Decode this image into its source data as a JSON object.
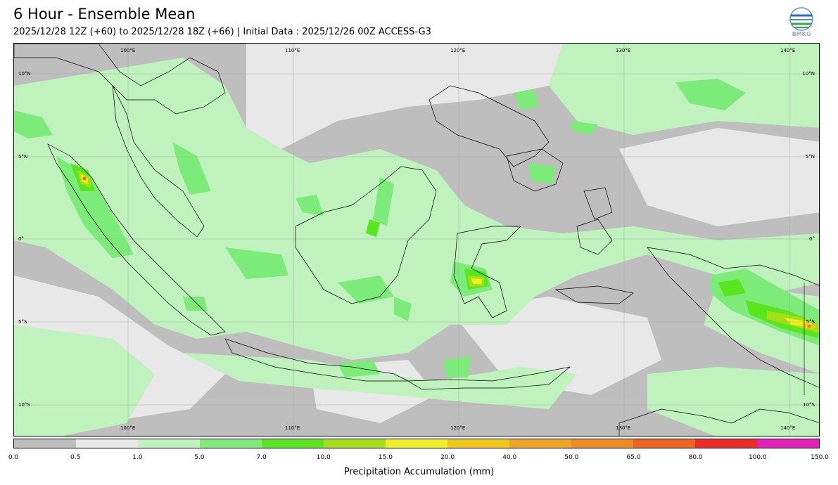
{
  "header": {
    "title": "6 Hour - Ensemble Mean",
    "subtitle": "2025/12/28 12Z (+60) to 2025/12/28 18Z (+66) | Initial Data : 2025/12/26 00Z ACCESS-G3",
    "logo_text": "BMKG"
  },
  "map": {
    "lon_labels": [
      "100°E",
      "110°E",
      "120°E",
      "130°E",
      "140°E"
    ],
    "lat_labels": [
      "10°N",
      "5°N",
      "0°",
      "5°S",
      "10°S"
    ],
    "background_color": "#bebebe",
    "land_border_color": "#000000"
  },
  "colorbar": {
    "label": "Precipitation Accumulation (mm)",
    "ticks": [
      "0.0",
      "0.5",
      "1.0",
      "5.0",
      "7.0",
      "10.0",
      "15.0",
      "20.0",
      "40.0",
      "50.0",
      "65.0",
      "80.0",
      "100.0",
      "150.0"
    ],
    "colors": [
      "#bebebe",
      "#e8e8e8",
      "#bff2bd",
      "#7deb7a",
      "#5ae61e",
      "#a6e014",
      "#f0f01e",
      "#f0c814",
      "#f0a51e",
      "#f08c1e",
      "#f0641e",
      "#f02828",
      "#e61ebe"
    ]
  }
}
